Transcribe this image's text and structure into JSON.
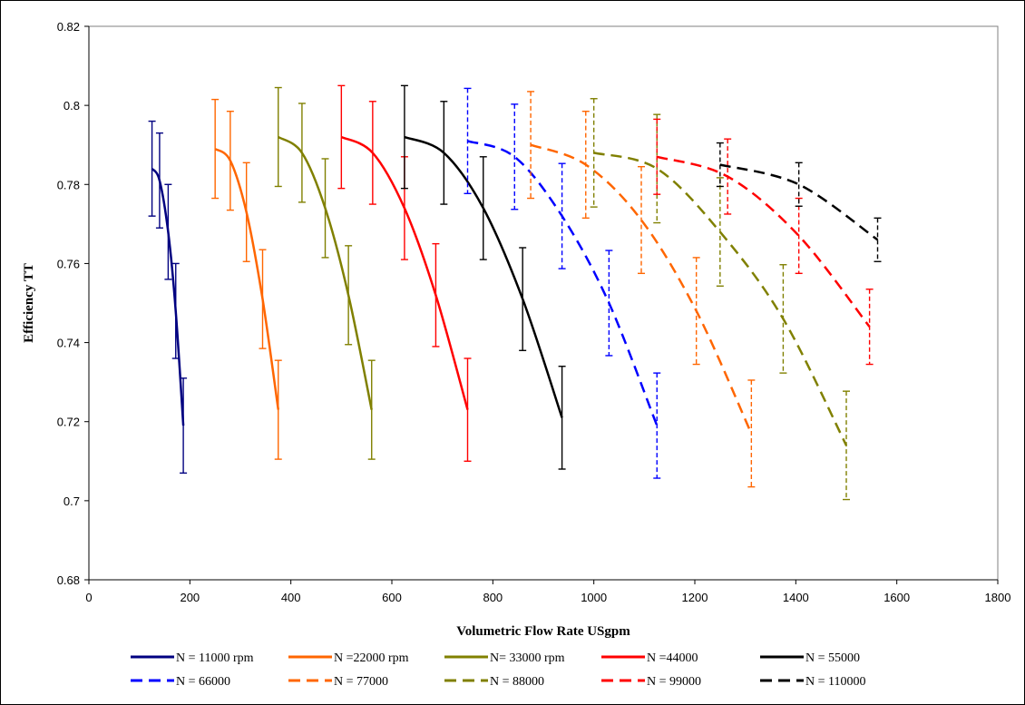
{
  "chart_data": {
    "type": "line",
    "title": "",
    "xlabel": "Volumetric Flow Rate USgpm",
    "ylabel": "Efficiency TT",
    "xlim": [
      0,
      1800
    ],
    "ylim": [
      0.68,
      0.82
    ],
    "x_ticks": [
      0,
      200,
      400,
      600,
      800,
      1000,
      1200,
      1400,
      1600,
      1800
    ],
    "y_ticks": [
      0.68,
      0.7,
      0.72,
      0.74,
      0.76,
      0.78,
      0.8,
      0.82
    ],
    "x_tick_labels": [
      "0",
      "200",
      "400",
      "600",
      "800",
      "1000",
      "1200",
      "1400",
      "1600",
      "1800"
    ],
    "y_tick_labels": [
      "0.68",
      "0.7",
      "0.72",
      "0.74",
      "0.76",
      "0.78",
      "0.8",
      "0.82"
    ],
    "grid": false,
    "legend_position": "bottom",
    "series": [
      {
        "name": "N = 11000 rpm",
        "color": "#000080",
        "dashed": false,
        "x": [
          125,
          140,
          157,
          172,
          187
        ],
        "y": [
          0.784,
          0.781,
          0.768,
          0.748,
          0.719
        ],
        "error": 0.012
      },
      {
        "name": "N =22000 rpm",
        "color": "#FF6600",
        "dashed": false,
        "x": [
          250,
          280,
          312,
          344,
          375
        ],
        "y": [
          0.789,
          0.786,
          0.773,
          0.751,
          0.723
        ],
        "error": 0.0125
      },
      {
        "name": "N= 33000 rpm",
        "color": "#808000",
        "dashed": false,
        "x": [
          375,
          422,
          468,
          514,
          560
        ],
        "y": [
          0.792,
          0.788,
          0.774,
          0.752,
          0.723
        ],
        "error": 0.0125
      },
      {
        "name": "N =44000",
        "color": "#FF0000",
        "dashed": false,
        "x": [
          500,
          562,
          625,
          687,
          750
        ],
        "y": [
          0.792,
          0.788,
          0.774,
          0.752,
          0.723
        ],
        "error": 0.013
      },
      {
        "name": "N = 55000",
        "color": "#000000",
        "dashed": false,
        "x": [
          625,
          703,
          781,
          859,
          937
        ],
        "y": [
          0.792,
          0.788,
          0.774,
          0.751,
          0.721
        ],
        "error": 0.013
      },
      {
        "name": "N = 66000",
        "color": "#0000FF",
        "dashed": true,
        "x": [
          750,
          843,
          937,
          1030,
          1125
        ],
        "y": [
          0.791,
          0.787,
          0.772,
          0.75,
          0.719
        ],
        "error": 0.0133
      },
      {
        "name": "N = 77000",
        "color": "#FF6600",
        "dashed": true,
        "x": [
          875,
          984,
          1094,
          1203,
          1312
        ],
        "y": [
          0.79,
          0.785,
          0.771,
          0.748,
          0.717
        ],
        "error": 0.0135
      },
      {
        "name": "N = 88000",
        "color": "#808000",
        "dashed": true,
        "x": [
          1000,
          1125,
          1250,
          1375,
          1500
        ],
        "y": [
          0.788,
          0.784,
          0.768,
          0.746,
          0.714
        ],
        "error": 0.0137
      },
      {
        "name": "N = 99000",
        "color": "#FF0000",
        "dashed": true,
        "x": [
          1125,
          1265,
          1406,
          1546
        ],
        "y": [
          0.787,
          0.782,
          0.767,
          0.744
        ],
        "error": 0.0095
      },
      {
        "name": "N = 110000",
        "color": "#000000",
        "dashed": true,
        "x": [
          1250,
          1406,
          1562
        ],
        "y": [
          0.785,
          0.78,
          0.766
        ],
        "error": 0.0055
      }
    ]
  }
}
